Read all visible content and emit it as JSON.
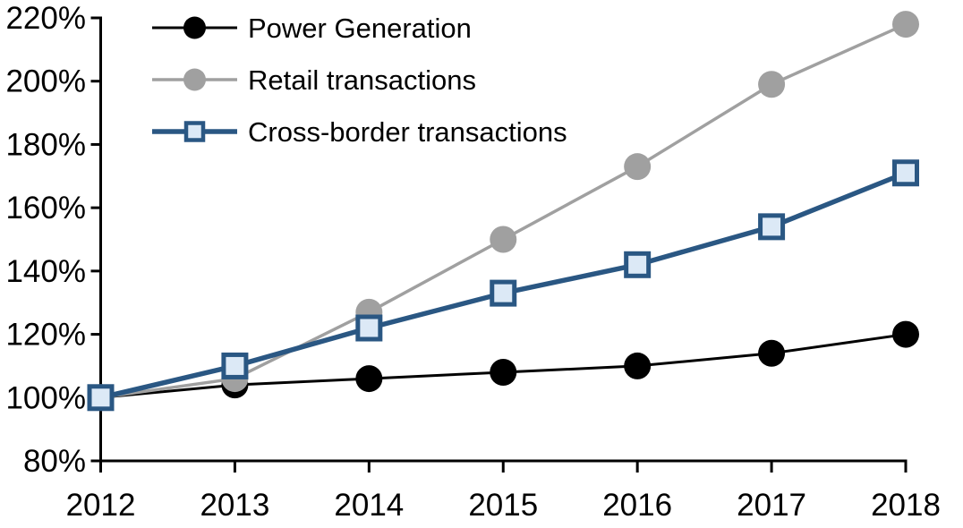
{
  "chart_data": {
    "type": "line",
    "title": "",
    "xlabel": "",
    "ylabel": "",
    "grid": false,
    "legend_position": "top-left",
    "background_color": "#ffffff",
    "axis_color": "#000000",
    "x": [
      2012,
      2013,
      2014,
      2015,
      2016,
      2017,
      2018
    ],
    "xtick_labels": [
      "2012",
      "2013",
      "2014",
      "2015",
      "2016",
      "2017",
      "2018"
    ],
    "ylim": [
      80,
      220
    ],
    "ytick_step": 20,
    "ytick_labels": [
      "80%",
      "100%",
      "120%",
      "140%",
      "160%",
      "180%",
      "200%",
      "220%"
    ],
    "series": [
      {
        "name": "Power Generation",
        "values": [
          100,
          104,
          106,
          108,
          110,
          114,
          120
        ],
        "color": "#000000",
        "marker": "circle",
        "marker_fill": "#000000",
        "line_width": 3
      },
      {
        "name": "Retail transactions",
        "values": [
          100,
          106,
          127,
          150,
          173,
          199,
          218
        ],
        "color": "#a0a0a0",
        "marker": "circle",
        "marker_fill": "#a0a0a0",
        "line_width": 3.5
      },
      {
        "name": "Cross-border transactions",
        "values": [
          100,
          110,
          122,
          133,
          142,
          154,
          171
        ],
        "color": "#2a5783",
        "marker": "square",
        "marker_fill": "#dce9f6",
        "line_width": 5.5
      }
    ]
  }
}
